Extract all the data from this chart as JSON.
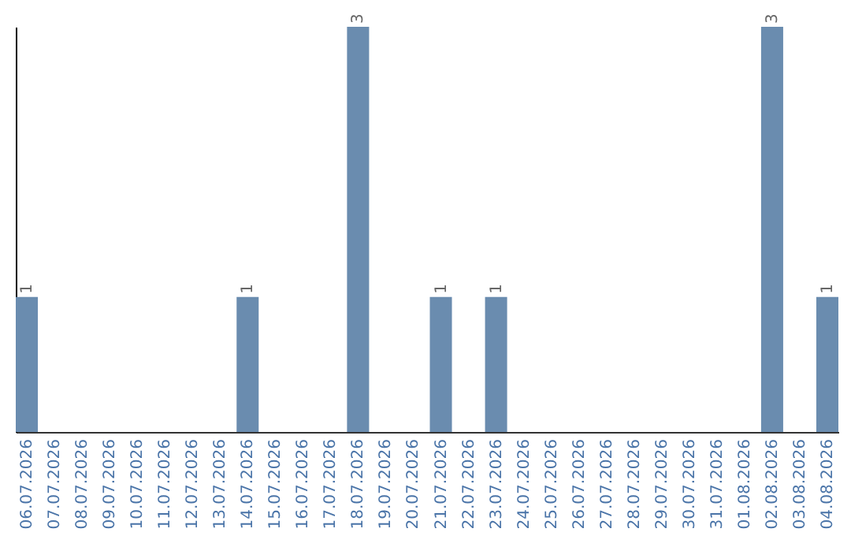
{
  "chart_data": {
    "type": "bar",
    "categories": [
      "06.07.2026",
      "07.07.2026",
      "08.07.2026",
      "09.07.2026",
      "10.07.2026",
      "11.07.2026",
      "12.07.2026",
      "13.07.2026",
      "14.07.2026",
      "15.07.2026",
      "16.07.2026",
      "17.07.2026",
      "18.07.2026",
      "19.07.2026",
      "20.07.2026",
      "21.07.2026",
      "22.07.2026",
      "23.07.2026",
      "24.07.2026",
      "25.07.2026",
      "26.07.2026",
      "27.07.2026",
      "28.07.2026",
      "29.07.2026",
      "30.07.2026",
      "31.07.2026",
      "01.08.2026",
      "02.08.2026",
      "03.08.2026",
      "04.08.2026"
    ],
    "values": [
      1,
      0,
      0,
      0,
      0,
      0,
      0,
      0,
      1,
      0,
      0,
      0,
      3,
      0,
      0,
      1,
      0,
      1,
      0,
      0,
      0,
      0,
      0,
      0,
      0,
      0,
      0,
      3,
      0,
      1
    ],
    "value_labels": [
      "1",
      null,
      null,
      null,
      null,
      null,
      null,
      null,
      "1",
      null,
      null,
      null,
      "3",
      null,
      null,
      "1",
      null,
      "1",
      null,
      null,
      null,
      null,
      null,
      null,
      null,
      null,
      null,
      "3",
      null,
      "1"
    ],
    "color": "#6a8caf",
    "ylim": [
      0,
      3
    ],
    "tick_labels": "x",
    "grid": false
  }
}
